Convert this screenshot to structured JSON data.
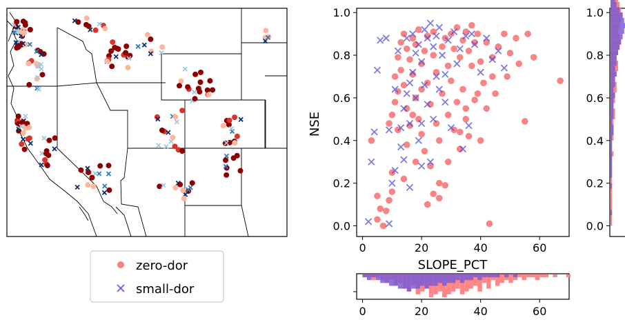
{
  "colors": {
    "zero_dor": "#f23a3a",
    "small_dor": "#4a4ad8",
    "zero_dor_hist": "#ff7f7f",
    "small_dor_hist": "#7b5cd6",
    "map_dark": "#8b0000",
    "map_mid": "#d9342b",
    "map_light": "#fcb79c",
    "map_blue_dark": "#08306b",
    "map_blue_mid": "#2f7ab9",
    "map_blue_light": "#9ecae1"
  },
  "legend": {
    "zero_dor_label": "zero-dor",
    "small_dor_label": "small-dor"
  },
  "chart_data": [
    {
      "type": "scatter",
      "panel": "map",
      "title": "",
      "xlabel": "",
      "ylabel": "",
      "series": [
        {
          "name": "zero-dor",
          "marker": "circle"
        },
        {
          "name": "small-dor",
          "marker": "x"
        }
      ]
    },
    {
      "type": "scatter",
      "panel": "main",
      "xlabel": "SLOPE_PCT",
      "ylabel": "NSE",
      "xlim": [
        -2,
        70
      ],
      "ylim": [
        -0.05,
        1.02
      ],
      "xticks": [
        "0",
        "20",
        "40",
        "60"
      ],
      "yticks": [
        "0.0",
        "0.2",
        "0.4",
        "0.6",
        "0.8",
        "1.0"
      ],
      "series": [
        {
          "name": "zero-dor",
          "marker": "circle",
          "points": [
            [
              3,
              0.4
            ],
            [
              5,
              0.14
            ],
            [
              6,
              0.08
            ],
            [
              5,
              0.03
            ],
            [
              7,
              0.0
            ],
            [
              8,
              0.07
            ],
            [
              9,
              0.12
            ],
            [
              10,
              0.25
            ],
            [
              9,
              0.48
            ],
            [
              10,
              0.52
            ],
            [
              11,
              0.58
            ],
            [
              11,
              0.7
            ],
            [
              12,
              0.63
            ],
            [
              12,
              0.79
            ],
            [
              13,
              0.73
            ],
            [
              13,
              0.86
            ],
            [
              14,
              0.66
            ],
            [
              14,
              0.9
            ],
            [
              15,
              0.83
            ],
            [
              15,
              0.55
            ],
            [
              16,
              0.47
            ],
            [
              16,
              0.78
            ],
            [
              17,
              0.88
            ],
            [
              17,
              0.71
            ],
            [
              18,
              0.6
            ],
            [
              18,
              0.85
            ],
            [
              19,
              0.5
            ],
            [
              19,
              0.92
            ],
            [
              20,
              0.76
            ],
            [
              20,
              0.43
            ],
            [
              21,
              0.35
            ],
            [
              21,
              0.82
            ],
            [
              22,
              0.89
            ],
            [
              22,
              0.67
            ],
            [
              23,
              0.28
            ],
            [
              23,
              0.57
            ],
            [
              24,
              0.8
            ],
            [
              24,
              0.91
            ],
            [
              25,
              0.72
            ],
            [
              25,
              0.48
            ],
            [
              26,
              0.13
            ],
            [
              26,
              0.2
            ],
            [
              27,
              0.84
            ],
            [
              27,
              0.62
            ],
            [
              28,
              0.88
            ],
            [
              28,
              0.19
            ],
            [
              29,
              0.75
            ],
            [
              29,
              0.52
            ],
            [
              30,
              0.9
            ],
            [
              30,
              0.68
            ],
            [
              31,
              0.45
            ],
            [
              31,
              0.83
            ],
            [
              32,
              0.93
            ],
            [
              32,
              0.58
            ],
            [
              33,
              0.79
            ],
            [
              33,
              0.36
            ],
            [
              34,
              0.87
            ],
            [
              34,
              0.64
            ],
            [
              35,
              0.91
            ],
            [
              35,
              0.5
            ],
            [
              36,
              0.82
            ],
            [
              36,
              0.42
            ],
            [
              37,
              0.94
            ],
            [
              37,
              0.75
            ],
            [
              38,
              0.86
            ],
            [
              38,
              0.59
            ],
            [
              39,
              0.9
            ],
            [
              40,
              0.77
            ],
            [
              40,
              0.4
            ],
            [
              41,
              0.67
            ],
            [
              42,
              0.86
            ],
            [
              42,
              0.55
            ],
            [
              43,
              0.01
            ],
            [
              44,
              0.79
            ],
            [
              45,
              0.62
            ],
            [
              46,
              0.84
            ],
            [
              48,
              0.9
            ],
            [
              49,
              0.7
            ],
            [
              50,
              0.81
            ],
            [
              52,
              0.88
            ],
            [
              53,
              0.76
            ],
            [
              55,
              0.49
            ],
            [
              56,
              0.9
            ],
            [
              58,
              0.79
            ],
            [
              67,
              0.68
            ],
            [
              10,
              0.16
            ],
            [
              14,
              0.22
            ],
            [
              18,
              0.3
            ],
            [
              22,
              0.1
            ],
            [
              24,
              0.15
            ],
            [
              12,
              0.45
            ],
            [
              15,
              0.38
            ],
            [
              17,
              0.52
            ],
            [
              20,
              0.64
            ],
            [
              26,
              0.4
            ],
            [
              29,
              0.3
            ],
            [
              33,
              0.44
            ],
            [
              35,
              0.55
            ],
            [
              39,
              0.62
            ],
            [
              44,
              0.7
            ]
          ]
        },
        {
          "name": "small-dor",
          "marker": "x",
          "points": [
            [
              2,
              0.02
            ],
            [
              3,
              0.3
            ],
            [
              4,
              0.44
            ],
            [
              5,
              0.73
            ],
            [
              6,
              0.87
            ],
            [
              8,
              0.88
            ],
            [
              9,
              0.01
            ],
            [
              10,
              0.2
            ],
            [
              11,
              0.26
            ],
            [
              12,
              0.82
            ],
            [
              13,
              0.37
            ],
            [
              13,
              0.46
            ],
            [
              14,
              0.31
            ],
            [
              14,
              0.55
            ],
            [
              15,
              0.88
            ],
            [
              15,
              0.62
            ],
            [
              16,
              0.67
            ],
            [
              16,
              0.48
            ],
            [
              17,
              0.9
            ],
            [
              17,
              0.72
            ],
            [
              18,
              0.81
            ],
            [
              18,
              0.6
            ],
            [
              19,
              0.85
            ],
            [
              20,
              0.77
            ],
            [
              20,
              0.48
            ],
            [
              21,
              0.92
            ],
            [
              21,
              0.66
            ],
            [
              22,
              0.88
            ],
            [
              22,
              0.57
            ],
            [
              23,
              0.95
            ],
            [
              23,
              0.3
            ],
            [
              24,
              0.84
            ],
            [
              24,
              0.5
            ],
            [
              25,
              0.89
            ],
            [
              26,
              0.64
            ],
            [
              26,
              0.93
            ],
            [
              27,
              0.8
            ],
            [
              28,
              0.71
            ],
            [
              29,
              0.87
            ],
            [
              30,
              0.46
            ],
            [
              31,
              0.91
            ],
            [
              32,
              0.76
            ],
            [
              33,
              0.83
            ],
            [
              34,
              0.36
            ],
            [
              35,
              0.89
            ],
            [
              36,
              0.47
            ],
            [
              37,
              0.9
            ],
            [
              38,
              0.85
            ],
            [
              40,
              0.72
            ],
            [
              42,
              0.88
            ],
            [
              44,
              0.78
            ],
            [
              46,
              0.82
            ],
            [
              48,
              0.74
            ],
            [
              16,
              0.18
            ],
            [
              20,
              0.28
            ],
            [
              28,
              0.58
            ],
            [
              9,
              0.45
            ],
            [
              11,
              0.64
            ],
            [
              19,
              0.4
            ],
            [
              25,
              0.7
            ]
          ]
        }
      ]
    },
    {
      "type": "bar",
      "panel": "bottom-histogram",
      "xlim": [
        -2,
        70
      ],
      "xticks": [
        "0",
        "20",
        "40",
        "60"
      ],
      "series": [
        {
          "name": "zero-dor",
          "bin_start": 0,
          "bin_width": 1.5,
          "counts": [
            1,
            1,
            2,
            1,
            2,
            3,
            2,
            4,
            3,
            5,
            6,
            4,
            7,
            6,
            5,
            8,
            7,
            6,
            8,
            7,
            6,
            5,
            7,
            6,
            5,
            4,
            6,
            3,
            5,
            2,
            4,
            3,
            2,
            3,
            2,
            1,
            2,
            1,
            1,
            2,
            1,
            1,
            0,
            1,
            0,
            0,
            1
          ]
        },
        {
          "name": "small-dor",
          "bin_start": 0,
          "bin_width": 1.5,
          "counts": [
            1,
            2,
            1,
            2,
            3,
            3,
            4,
            4,
            5,
            5,
            6,
            5,
            5,
            4,
            5,
            4,
            4,
            3,
            4,
            3,
            3,
            2,
            3,
            2,
            2,
            1,
            2,
            1,
            1,
            1,
            1,
            0,
            1,
            0,
            1,
            0,
            0,
            0,
            0,
            0,
            0,
            0,
            0,
            0,
            0,
            0,
            0
          ]
        }
      ]
    },
    {
      "type": "bar",
      "panel": "right-histogram",
      "ylim": [
        -0.05,
        1.02
      ],
      "yticks": [
        "0.0",
        "0.2",
        "0.4",
        "0.6",
        "0.8",
        "1.0"
      ],
      "series": [
        {
          "name": "zero-dor",
          "bin_start": 0.0,
          "bin_width": 0.025,
          "counts": [
            1,
            1,
            1,
            1,
            1,
            1,
            1,
            1,
            1,
            1,
            1,
            1,
            1,
            2,
            1,
            1,
            2,
            2,
            2,
            2,
            3,
            3,
            2,
            3,
            3,
            4,
            4,
            3,
            4,
            5,
            5,
            4,
            5,
            6,
            7,
            6,
            5,
            6,
            7,
            8,
            7,
            6,
            5,
            3
          ]
        },
        {
          "name": "small-dor",
          "bin_start": 0.0,
          "bin_width": 0.025,
          "counts": [
            0,
            0,
            1,
            0,
            0,
            0,
            0,
            1,
            0,
            1,
            1,
            1,
            1,
            1,
            1,
            1,
            1,
            2,
            2,
            1,
            2,
            2,
            2,
            2,
            3,
            2,
            3,
            3,
            4,
            3,
            4,
            4,
            5,
            6,
            7,
            8,
            9,
            10,
            9,
            8,
            6,
            4,
            3,
            2
          ]
        }
      ]
    }
  ]
}
